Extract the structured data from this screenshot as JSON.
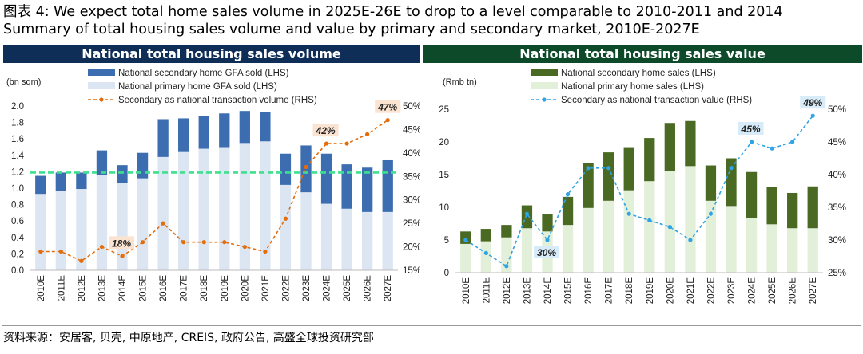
{
  "title_line1": "图表 4: We expect total home sales volume in 2025E-26E to drop to a level comparable to 2010-2011 and 2014",
  "title_line2": "Summary of total housing sales volume and value by primary and secondary market, 2010E-2027E",
  "source": "资料来源：安居客, 贝壳, 中原地产, CREIS, 政府公告, 高盛全球投资研究部",
  "colors": {
    "left_header_bg": "#0f2e57",
    "right_header_bg": "#0c4a2a",
    "left_secondary": "#3b6db0",
    "left_primary": "#dce6f2",
    "left_line": "#e46c0a",
    "left_hline": "#3ee08f",
    "right_secondary": "#4a6a23",
    "right_primary": "#e2efd9",
    "right_line": "#2ea3e6"
  },
  "chart_data": [
    {
      "type": "bar",
      "stacked": true,
      "title": "National total housing sales volume",
      "unit_label": "(bn sqm)",
      "categories": [
        "2010E",
        "2011E",
        "2012E",
        "2013E",
        "2014E",
        "2015E",
        "2016E",
        "2017E",
        "2018E",
        "2019E",
        "2020E",
        "2021E",
        "2022E",
        "2023E",
        "2024E",
        "2025E",
        "2026E",
        "2027E"
      ],
      "series": [
        {
          "name": "National primary home GFA sold (LHS)",
          "axis": "left",
          "values": [
            0.93,
            0.97,
            0.99,
            1.16,
            1.06,
            1.12,
            1.38,
            1.44,
            1.48,
            1.5,
            1.55,
            1.57,
            1.04,
            0.95,
            0.81,
            0.75,
            0.71,
            0.71
          ]
        },
        {
          "name": "National secondary home GFA sold (LHS)",
          "axis": "left",
          "values": [
            0.22,
            0.22,
            0.2,
            0.3,
            0.22,
            0.31,
            0.46,
            0.41,
            0.4,
            0.41,
            0.39,
            0.36,
            0.38,
            0.57,
            0.61,
            0.54,
            0.54,
            0.63
          ]
        },
        {
          "name": "Secondary as national transaction volume (RHS)",
          "axis": "right",
          "type": "line",
          "values": [
            19,
            19,
            17,
            20,
            18,
            21,
            25,
            21,
            21,
            21,
            20,
            19,
            26,
            37,
            42,
            42,
            44,
            47
          ]
        }
      ],
      "highlight_labels": [
        {
          "index": 4,
          "text": "18%"
        },
        {
          "index": 14,
          "text": "42%"
        },
        {
          "index": 17,
          "text": "47%"
        }
      ],
      "reference_line": 1.19,
      "ylim": [
        0.0,
        2.0
      ],
      "y_ticks": [
        "0.0",
        "0.2",
        "0.4",
        "0.6",
        "0.8",
        "1.0",
        "1.2",
        "1.4",
        "1.6",
        "1.8",
        "2.0"
      ],
      "y2lim": [
        15,
        50
      ],
      "y2_ticks": [
        "15%",
        "20%",
        "25%",
        "30%",
        "35%",
        "40%",
        "45%",
        "50%"
      ]
    },
    {
      "type": "bar",
      "stacked": true,
      "title": "National total housing sales value",
      "unit_label": "(Rmb tn)",
      "categories": [
        "2010E",
        "2011E",
        "2012E",
        "2013E",
        "2014E",
        "2015E",
        "2016E",
        "2017E",
        "2018E",
        "2019E",
        "2020E",
        "2021E",
        "2022E",
        "2023E",
        "2024E",
        "2025E",
        "2026E",
        "2027E"
      ],
      "series": [
        {
          "name": "National primary home sales (LHS)",
          "axis": "left",
          "values": [
            4.4,
            4.8,
            5.4,
            6.8,
            6.3,
            7.3,
            9.9,
            11.0,
            12.6,
            14.0,
            15.5,
            16.3,
            11.0,
            10.2,
            8.4,
            7.4,
            6.8,
            6.8
          ]
        },
        {
          "name": "National secondary home sales (LHS)",
          "axis": "left",
          "values": [
            1.9,
            1.9,
            1.9,
            3.5,
            2.6,
            4.3,
            6.9,
            7.4,
            6.6,
            6.6,
            7.4,
            6.9,
            5.4,
            7.3,
            7.0,
            5.7,
            5.4,
            6.4
          ]
        },
        {
          "name": "Secondary as national transaction value (RHS)",
          "axis": "right",
          "type": "line",
          "values": [
            30,
            28,
            26,
            34,
            30,
            37,
            41,
            41,
            34,
            33,
            32,
            30,
            34,
            41,
            45,
            44,
            45,
            49
          ]
        }
      ],
      "highlight_labels": [
        {
          "index": 4,
          "text": "30%"
        },
        {
          "index": 14,
          "text": "45%"
        },
        {
          "index": 17,
          "text": "49%"
        }
      ],
      "ylim": [
        0,
        25
      ],
      "y_ticks": [
        "0",
        "5",
        "10",
        "15",
        "20",
        "25"
      ],
      "y2lim": [
        25,
        50
      ],
      "y2_ticks": [
        "25%",
        "30%",
        "35%",
        "40%",
        "45%",
        "50%"
      ]
    }
  ]
}
